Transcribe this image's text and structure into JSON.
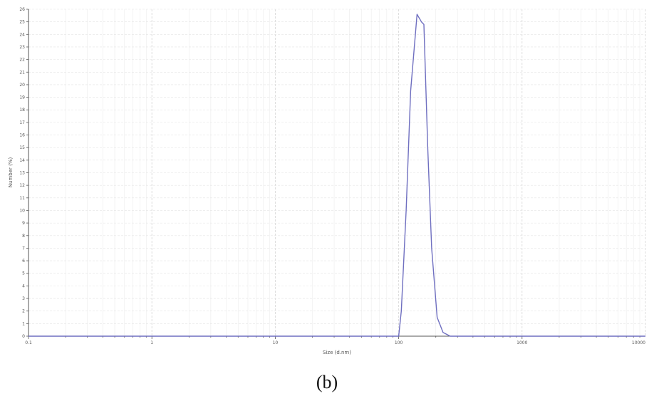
{
  "chart_data": {
    "type": "line",
    "title": "",
    "xlabel": "Size (d.nm)",
    "ylabel": "Number (%)",
    "x_scale": "log",
    "xlim": [
      0.1,
      10000
    ],
    "ylim": [
      0,
      26
    ],
    "x_ticks": [
      0.1,
      1,
      10,
      100,
      1000,
      10000
    ],
    "x_tick_labels": [
      "0.1",
      "1",
      "10",
      "100",
      "1000",
      "10000"
    ],
    "y_ticks": [
      0,
      1,
      2,
      3,
      4,
      5,
      6,
      7,
      8,
      9,
      10,
      11,
      12,
      13,
      14,
      15,
      16,
      17,
      18,
      19,
      20,
      21,
      22,
      23,
      24,
      25,
      26
    ],
    "grid": true,
    "series": [
      {
        "color": "#6f6fc0",
        "x": [
          0.1,
          100,
          105,
          115,
          125,
          141,
          153,
          160,
          172,
          185,
          205,
          229,
          262,
          10000
        ],
        "y": [
          0,
          0,
          2.0,
          10.0,
          19.5,
          25.6,
          25.0,
          24.8,
          15.0,
          7.0,
          1.5,
          0.3,
          0,
          0
        ]
      }
    ],
    "panel_label": "(b)"
  }
}
